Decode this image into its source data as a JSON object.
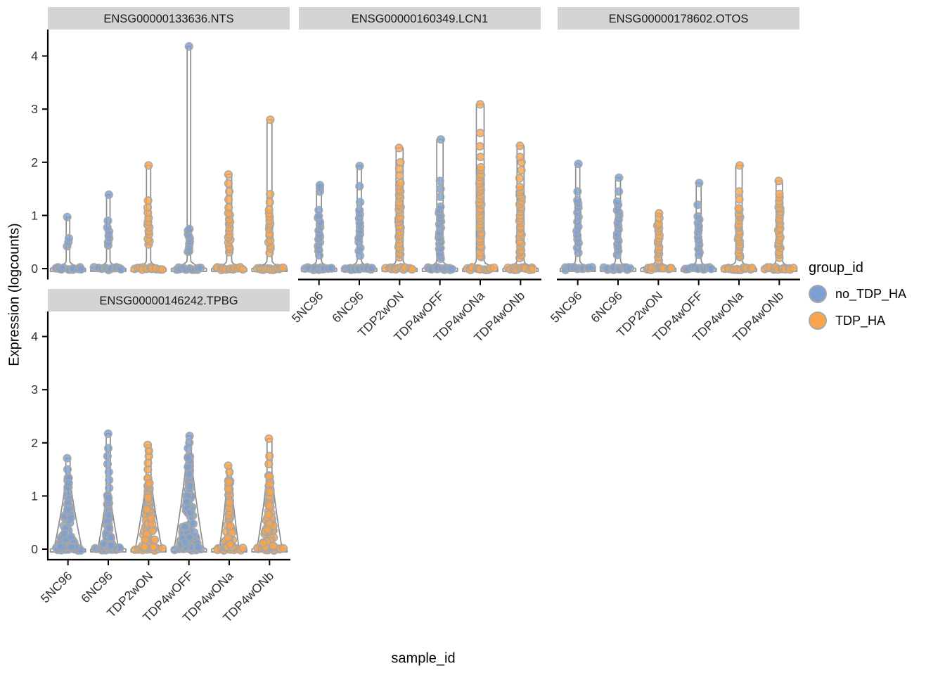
{
  "axes": {
    "x_label": "sample_id",
    "y_label": "Expression (logcounts)"
  },
  "legend": {
    "title": "group_id",
    "entries": [
      {
        "label": "no_TDP_HA",
        "color": "#7da0d2"
      },
      {
        "label": "TDP_HA",
        "color": "#faa54c"
      }
    ]
  },
  "colors": {
    "violin_outline": "#8c8c8c",
    "dot_stroke": "#a6a6a6",
    "axis_line": "#000000",
    "strip_background": "#d4d4d4",
    "strip_text": "#1a1a1a",
    "tick_text": "#303030"
  },
  "chart_data": {
    "type": "violin",
    "xlabel": "sample_id",
    "ylabel": "Expression (logcounts)",
    "yticks": [
      0,
      1,
      2,
      3,
      4
    ],
    "ylim": [
      -0.2,
      4.5
    ],
    "x_categories": [
      "5NC96",
      "6NC96",
      "TDP2wON",
      "TDP4wOFF",
      "TDP4wONa",
      "TDP4wONb"
    ],
    "legend_title": "group_id",
    "groups": {
      "no_TDP_HA": "#7da0d2",
      "TDP_HA": "#faa54c"
    },
    "sample_group": {
      "5NC96": "no_TDP_HA",
      "6NC96": "no_TDP_HA",
      "TDP2wON": "TDP_HA",
      "TDP4wOFF": "no_TDP_HA",
      "TDP4wONa": "TDP_HA",
      "TDP4wONb": "TDP_HA"
    },
    "facets": [
      {
        "title": "ENSG00000133636.NTS",
        "row": 0,
        "col": 0,
        "violins": [
          {
            "sample": "5NC96",
            "group": "no_TDP_HA",
            "max": 0.97,
            "sw": 2.5,
            "stem": [
              0.42,
              0.5,
              0.57,
              0.97
            ]
          },
          {
            "sample": "6NC96",
            "group": "no_TDP_HA",
            "max": 1.39,
            "sw": 2.5,
            "dense": {
              "from": 0.42,
              "to": 0.78,
              "n": 6
            },
            "stem": [
              0.9,
              1.39
            ]
          },
          {
            "sample": "TDP2wON",
            "group": "TDP_HA",
            "max": 1.94,
            "sw": 3,
            "dense": {
              "from": 0.45,
              "to": 0.95,
              "n": 9
            },
            "stem": [
              1.05,
              1.15,
              1.28,
              1.94
            ]
          },
          {
            "sample": "TDP4wOFF",
            "group": "no_TDP_HA",
            "max": 4.18,
            "sw": 2.5,
            "dense": {
              "from": 0.3,
              "to": 0.75,
              "n": 10
            },
            "stem": [
              4.18
            ]
          },
          {
            "sample": "TDP4wONa",
            "group": "TDP_HA",
            "max": 1.77,
            "sw": 3.5,
            "dense": {
              "from": 0.3,
              "to": 1.05,
              "n": 14
            },
            "stem": [
              1.15,
              1.3,
              1.45,
              1.6,
              1.77
            ]
          },
          {
            "sample": "TDP4wONb",
            "group": "TDP_HA",
            "max": 2.8,
            "sw": 3.5,
            "dense": {
              "from": 0.3,
              "to": 1.1,
              "n": 14
            },
            "stem": [
              1.25,
              1.4,
              2.8
            ]
          }
        ]
      },
      {
        "title": "ENSG00000160349.LCN1",
        "row": 0,
        "col": 1,
        "violins": [
          {
            "sample": "5NC96",
            "group": "no_TDP_HA",
            "max": 1.57,
            "sw": 3.5,
            "dense": {
              "from": 0.25,
              "to": 1.0,
              "n": 14
            },
            "stem": [
              1.1,
              1.45,
              1.52,
              1.57
            ]
          },
          {
            "sample": "6NC96",
            "group": "no_TDP_HA",
            "max": 1.93,
            "sw": 3,
            "dense": {
              "from": 0.25,
              "to": 1.1,
              "n": 12
            },
            "stem": [
              1.25,
              1.55,
              1.93
            ]
          },
          {
            "sample": "TDP2wON",
            "group": "TDP_HA",
            "max": 2.27,
            "sw": 5,
            "dense": {
              "from": 0.2,
              "to": 1.6,
              "n": 26
            },
            "stem": [
              1.75,
              1.88,
              2.0,
              2.27
            ]
          },
          {
            "sample": "TDP4wOFF",
            "group": "no_TDP_HA",
            "max": 2.43,
            "sw": 4.5,
            "dense": {
              "from": 0.2,
              "to": 1.15,
              "n": 20
            },
            "stem": [
              1.35,
              1.5,
              1.65,
              2.43
            ]
          },
          {
            "sample": "TDP4wONa",
            "group": "TDP_HA",
            "max": 3.09,
            "sw": 5.5,
            "dense": {
              "from": 0.2,
              "to": 1.9,
              "n": 30
            },
            "stem": [
              2.1,
              2.3,
              2.55,
              3.09
            ]
          },
          {
            "sample": "TDP4wONb",
            "group": "TDP_HA",
            "max": 2.31,
            "sw": 5,
            "dense": {
              "from": 0.2,
              "to": 1.55,
              "n": 26
            },
            "stem": [
              1.7,
              1.85,
              2.0,
              2.1,
              2.31
            ]
          }
        ]
      },
      {
        "title": "ENSG00000178602.OTOS",
        "row": 0,
        "col": 2,
        "violins": [
          {
            "sample": "5NC96",
            "group": "no_TDP_HA",
            "max": 1.97,
            "sw": 3,
            "dense": {
              "from": 0.3,
              "to": 1.3,
              "n": 13
            },
            "stem": [
              1.45,
              1.97
            ]
          },
          {
            "sample": "6NC96",
            "group": "no_TDP_HA",
            "max": 1.71,
            "sw": 3.5,
            "dense": {
              "from": 0.25,
              "to": 1.25,
              "n": 16
            },
            "stem": [
              1.45,
              1.71
            ]
          },
          {
            "sample": "TDP2wON",
            "group": "TDP_HA",
            "max": 1.04,
            "sw": 4,
            "dense": {
              "from": 0.15,
              "to": 0.85,
              "n": 14
            },
            "stem": [
              0.95,
              1.04
            ]
          },
          {
            "sample": "TDP4wOFF",
            "group": "no_TDP_HA",
            "max": 1.61,
            "sw": 3.5,
            "dense": {
              "from": 0.25,
              "to": 1.0,
              "n": 12
            },
            "stem": [
              1.2,
              1.61
            ]
          },
          {
            "sample": "TDP4wONa",
            "group": "TDP_HA",
            "max": 1.94,
            "sw": 4.5,
            "dense": {
              "from": 0.2,
              "to": 1.15,
              "n": 20
            },
            "stem": [
              1.3,
              1.45,
              1.94
            ]
          },
          {
            "sample": "TDP4wONb",
            "group": "TDP_HA",
            "max": 1.65,
            "sw": 4.5,
            "dense": {
              "from": 0.2,
              "to": 1.4,
              "n": 22
            },
            "stem": [
              1.65
            ]
          }
        ]
      },
      {
        "title": "ENSG00000146242.TPBG",
        "row": 1,
        "col": 0,
        "violins": [
          {
            "sample": "5NC96",
            "group": "no_TDP_HA",
            "max": 1.71,
            "sw": 3,
            "body": {
              "to": 1.35,
              "n": 70,
              "hw": 20
            },
            "stem": [
              1.5,
              1.71
            ]
          },
          {
            "sample": "6NC96",
            "group": "no_TDP_HA",
            "max": 2.17,
            "sw": 3,
            "body": {
              "to": 1.05,
              "n": 55,
              "hw": 15
            },
            "stem": [
              1.15,
              1.3,
              1.45,
              1.6,
              1.75,
              1.9,
              2.17
            ]
          },
          {
            "sample": "TDP2wON",
            "group": "TDP_HA",
            "max": 1.96,
            "sw": 3.5,
            "body": {
              "to": 1.35,
              "n": 85,
              "hw": 19
            },
            "stem": [
              1.5,
              1.62,
              1.75,
              1.85,
              1.96
            ]
          },
          {
            "sample": "TDP4wOFF",
            "group": "no_TDP_HA",
            "max": 2.13,
            "sw": 3.5,
            "body": {
              "to": 1.75,
              "n": 110,
              "hw": 21
            },
            "stem": [
              1.9,
              2.0,
              2.13
            ]
          },
          {
            "sample": "TDP4wONa",
            "group": "TDP_HA",
            "max": 1.57,
            "sw": 3,
            "body": {
              "to": 1.3,
              "n": 55,
              "hw": 14
            },
            "stem": [
              1.45,
              1.57
            ]
          },
          {
            "sample": "TDP4wONb",
            "group": "TDP_HA",
            "max": 2.08,
            "sw": 3.5,
            "body": {
              "to": 1.45,
              "n": 75,
              "hw": 18
            },
            "stem": [
              1.6,
              1.75,
              2.08
            ]
          }
        ]
      }
    ]
  }
}
